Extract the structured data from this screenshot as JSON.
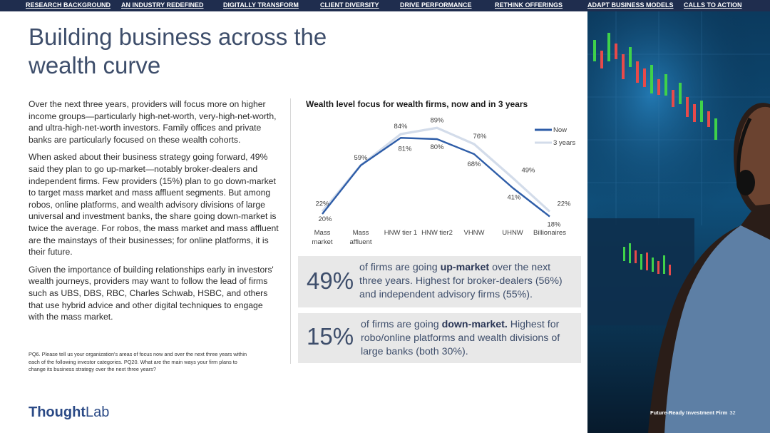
{
  "nav": {
    "items": [
      "RESEARCH BACKGROUND",
      "AN INDUSTRY REDEFINED",
      "DIGITALLY TRANSFORM",
      "CLIENT DIVERSITY",
      "DRIVE PERFORMANCE",
      "RETHINK OFFERINGS",
      "ADAPT BUSINESS MODELS",
      "CALLS TO ACTION"
    ]
  },
  "page": {
    "title": "Building business across the wealth curve",
    "paragraphs": [
      "Over the next three years, providers will focus more on higher income groups—particularly high-net-worth, very-high-net-worth, and ultra-high-net-worth investors. Family offices and private banks are particularly focused on these wealth cohorts.",
      "When asked about their business strategy going forward, 49% said they plan to go up-market—notably broker-dealers and independent firms. Few providers (15%) plan to go down-market to target mass market and mass affluent segments. But among robos, online platforms, and wealth advisory divisions of large universal and investment banks, the share going down-market is twice the average. For robos, the mass market and mass affluent are the mainstays of their businesses; for online platforms, it is their future.",
      "Given the importance of building relationships early in investors' wealth journeys, providers may want to follow the lead of firms such as UBS, DBS, RBC, Charles Schwab, HSBC, and others that use hybrid advice and other digital techniques to engage with the mass market."
    ],
    "footnote": "PQ6. Please tell us your organization's areas of focus now and over the next three years within each of the following investor categories. PQ20. What are the main ways your firm plans to change its business strategy over the next three years?"
  },
  "callouts": [
    {
      "value": "49%",
      "text_before": "of firms are going ",
      "text_bold": "up-market",
      "text_after": " over the next three years. Highest for broker-dealers (56%) and independent advisory firms (55%)."
    },
    {
      "value": "15%",
      "text_before": "of firms are going ",
      "text_bold": "down-market.",
      "text_after": " Highest for robo/online platforms and wealth divisions of large banks (both 30%)."
    }
  ],
  "logo": {
    "part1": "Thought",
    "part2": "Lab"
  },
  "footer": {
    "label": "Future-Ready Investment Firm",
    "page_number": "32"
  },
  "colors": {
    "nav_bg": "#1f2d4e",
    "accent": "#3e4e6b",
    "now_series": "#2e5da8",
    "three_year_series": "#d3dcea",
    "callout_bg": "#e8e8e8"
  },
  "chart_data": {
    "type": "line",
    "title": "Wealth level focus for wealth firms, now and in 3 years",
    "categories": [
      "Mass market",
      "Mass affluent",
      "HNW tier 1",
      "HNW tier2",
      "VHNW",
      "UHNW",
      "Billionaires"
    ],
    "series": [
      {
        "name": "Now",
        "values": [
          20,
          59,
          81,
          80,
          68,
          41,
          18
        ]
      },
      {
        "name": "3 years",
        "values": [
          22,
          59,
          84,
          89,
          76,
          49,
          22
        ]
      }
    ],
    "xlabel": "",
    "ylabel": "",
    "ylim": [
      0,
      100
    ],
    "legend": "top-right",
    "grid": false
  }
}
